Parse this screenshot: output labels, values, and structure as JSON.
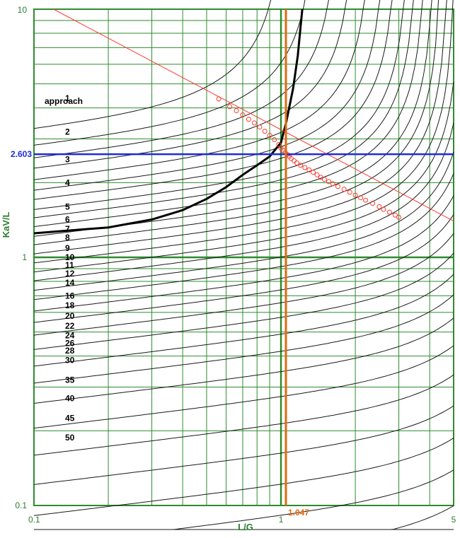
{
  "chart_data": {
    "type": "line",
    "xlabel": "L/G",
    "ylabel": "KaV/L",
    "x_scale": "log",
    "y_scale": "log",
    "xlim": [
      0.1,
      5
    ],
    "ylim": [
      0.1,
      10
    ],
    "x_ticks": [
      "0.1",
      "1",
      "5"
    ],
    "y_ticks": [
      "0.1",
      "1",
      "10"
    ],
    "grid": true,
    "approach_header": "approach",
    "approach_labels": [
      {
        "text": "1",
        "y": 4.38
      },
      {
        "text": "2",
        "y": 3.2
      },
      {
        "text": "3",
        "y": 2.48
      },
      {
        "text": "4",
        "y": 2.0
      },
      {
        "text": "5",
        "y": 1.6
      },
      {
        "text": "6",
        "y": 1.42
      },
      {
        "text": "7",
        "y": 1.3
      },
      {
        "text": "8",
        "y": 1.2
      },
      {
        "text": "9",
        "y": 1.09
      },
      {
        "text": "10",
        "y": 1.0
      },
      {
        "text": "11",
        "y": 0.93
      },
      {
        "text": "12",
        "y": 0.86
      },
      {
        "text": "14",
        "y": 0.79
      },
      {
        "text": "16",
        "y": 0.7
      },
      {
        "text": "18",
        "y": 0.64
      },
      {
        "text": "20",
        "y": 0.58
      },
      {
        "text": "22",
        "y": 0.53
      },
      {
        "text": "24",
        "y": 0.485
      },
      {
        "text": "26",
        "y": 0.45
      },
      {
        "text": "28",
        "y": 0.42
      },
      {
        "text": "30",
        "y": 0.385
      },
      {
        "text": "35",
        "y": 0.32
      },
      {
        "text": "40",
        "y": 0.27
      },
      {
        "text": "45",
        "y": 0.225
      },
      {
        "text": "50",
        "y": 0.188
      }
    ],
    "series": [
      {
        "color": "#1a1a1a",
        "bold": false,
        "c": 4.3
      },
      {
        "color": "#1a1a1a",
        "bold": false,
        "c": 3.7
      },
      {
        "color": "#1a1a1a",
        "bold": false,
        "c": 3.3
      },
      {
        "color": "#1a1a1a",
        "bold": false,
        "c": 3.0
      },
      {
        "color": "#1a1a1a",
        "bold": false,
        "c": 2.7
      },
      {
        "color": "#1a1a1a",
        "bold": false,
        "c": 2.45
      },
      {
        "color": "#1a1a1a",
        "bold": false,
        "c": 2.25
      },
      {
        "color": "#1a1a1a",
        "bold": false,
        "c": 2.05
      },
      {
        "color": "#1a1a1a",
        "bold": false,
        "c": 1.9
      },
      {
        "color": "#1a1a1a",
        "bold": false,
        "c": 1.75
      },
      {
        "color": "#1a1a1a",
        "bold": false,
        "c": 1.6
      },
      {
        "color": "#1a1a1a",
        "bold": false,
        "c": 1.48
      },
      {
        "color": "#1a1a1a",
        "bold": false,
        "c": 1.36
      },
      {
        "color": "#1a1a1a",
        "bold": false,
        "c": 1.25
      },
      {
        "color": "#1a1a1a",
        "bold": false,
        "c": 1.15
      },
      {
        "color": "#1a1a1a",
        "bold": false,
        "c": 1.06
      },
      {
        "color": "#1a1a1a",
        "bold": false,
        "c": 0.97
      },
      {
        "color": "#1a1a1a",
        "bold": false,
        "c": 0.89
      },
      {
        "color": "#1a1a1a",
        "bold": false,
        "c": 0.8
      },
      {
        "color": "#1a1a1a",
        "bold": false,
        "c": 0.72
      },
      {
        "color": "#1a1a1a",
        "bold": false,
        "c": 0.64
      },
      {
        "color": "#1a1a1a",
        "bold": false,
        "c": 0.56
      },
      {
        "color": "#1a1a1a",
        "bold": false,
        "c": 0.48
      },
      {
        "color": "#1a1a1a",
        "bold": false,
        "c": 0.41
      },
      {
        "color": "#1a1a1a",
        "bold": false,
        "c": 0.34
      },
      {
        "color": "#1a1a1a",
        "bold": false,
        "c": 0.27
      },
      {
        "color": "#1a1a1a",
        "bold": false,
        "c": 0.21
      },
      {
        "color": "#1a1a1a",
        "bold": false,
        "c": 0.16
      },
      {
        "color": "#1a1a1a",
        "bold": false,
        "c": 0.12
      },
      {
        "color": "#1a1a1a",
        "bold": false,
        "c": 0.09
      },
      {
        "color": "#1a1a1a",
        "bold": false,
        "c": 0.065
      },
      {
        "color": "#1a1a1a",
        "bold": false,
        "c": 0.045
      },
      {
        "color": "#1a1a1a",
        "bold": false,
        "c": 0.03
      }
    ],
    "bold_curve": {
      "color": "#000000",
      "points": [
        [
          0.1,
          1.25
        ],
        [
          0.2,
          1.32
        ],
        [
          0.3,
          1.42
        ],
        [
          0.4,
          1.55
        ],
        [
          0.5,
          1.72
        ],
        [
          0.6,
          1.92
        ],
        [
          0.7,
          2.15
        ],
        [
          0.8,
          2.35
        ],
        [
          0.9,
          2.55
        ],
        [
          1.0,
          2.9
        ],
        [
          1.05,
          3.5
        ],
        [
          1.12,
          4.8
        ],
        [
          1.17,
          6.5
        ],
        [
          1.2,
          8.5
        ],
        [
          1.22,
          10
        ]
      ]
    },
    "reference_line": {
      "color": "#ff3b2f",
      "points": [
        [
          0.12,
          10
        ],
        [
          5,
          1.4
        ]
      ]
    },
    "scatter": {
      "color": "#ff3b2f",
      "points": [
        [
          0.56,
          4.35
        ],
        [
          0.62,
          4.05
        ],
        [
          0.66,
          3.9
        ],
        [
          0.7,
          3.75
        ],
        [
          0.74,
          3.6
        ],
        [
          0.78,
          3.48
        ],
        [
          0.82,
          3.35
        ],
        [
          0.86,
          3.22
        ],
        [
          0.9,
          3.1
        ],
        [
          0.94,
          2.98
        ],
        [
          0.98,
          2.85
        ],
        [
          1.0,
          2.75
        ],
        [
          1.02,
          2.7
        ],
        [
          1.04,
          2.65
        ],
        [
          1.06,
          2.6
        ],
        [
          1.08,
          2.55
        ],
        [
          1.1,
          2.5
        ],
        [
          1.13,
          2.45
        ],
        [
          1.16,
          2.4
        ],
        [
          1.2,
          2.35
        ],
        [
          1.25,
          2.3
        ],
        [
          1.3,
          2.25
        ],
        [
          1.35,
          2.2
        ],
        [
          1.4,
          2.15
        ],
        [
          1.45,
          2.1
        ],
        [
          1.5,
          2.06
        ],
        [
          1.56,
          2.02
        ],
        [
          1.62,
          1.98
        ],
        [
          1.7,
          1.93
        ],
        [
          1.8,
          1.88
        ],
        [
          1.9,
          1.83
        ],
        [
          2.0,
          1.78
        ],
        [
          2.1,
          1.74
        ],
        [
          2.2,
          1.7
        ],
        [
          2.35,
          1.65
        ],
        [
          2.5,
          1.6
        ],
        [
          2.6,
          1.56
        ],
        [
          2.75,
          1.52
        ],
        [
          2.9,
          1.48
        ],
        [
          3.0,
          1.45
        ]
      ]
    },
    "highlight_y": {
      "value": 2.603,
      "label": "2.603",
      "color": "#1f2bd6"
    },
    "highlight_x": {
      "value": 1.047,
      "label": "1.047",
      "color": "#e06a10"
    },
    "grid_color": "#2e8b2e"
  }
}
